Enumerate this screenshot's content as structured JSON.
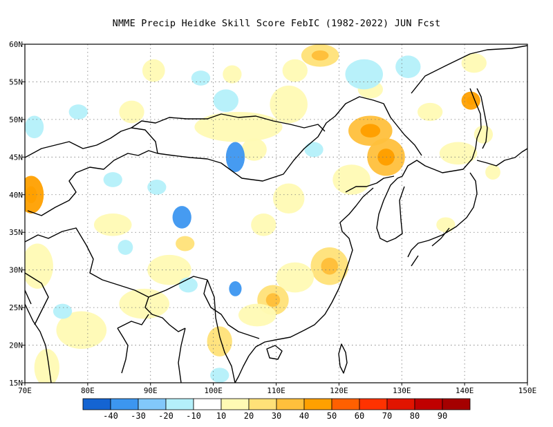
{
  "title": "NMME Precip Heidke Skill Score FebIC (1982-2022) JUN Fcst",
  "lon_range": [
    70,
    150
  ],
  "lat_range": [
    15,
    60
  ],
  "x_ticks": [
    {
      "value": 70,
      "label": "70E"
    },
    {
      "value": 80,
      "label": "80E"
    },
    {
      "value": 90,
      "label": "90E"
    },
    {
      "value": 100,
      "label": "100E"
    },
    {
      "value": 110,
      "label": "110E"
    },
    {
      "value": 120,
      "label": "120E"
    },
    {
      "value": 130,
      "label": "130E"
    },
    {
      "value": 140,
      "label": "140E"
    },
    {
      "value": 150,
      "label": "150E"
    }
  ],
  "y_ticks": [
    {
      "value": 15,
      "label": "15N"
    },
    {
      "value": 20,
      "label": "20N"
    },
    {
      "value": 25,
      "label": "25N"
    },
    {
      "value": 30,
      "label": "30N"
    },
    {
      "value": 35,
      "label": "35N"
    },
    {
      "value": 40,
      "label": "40N"
    },
    {
      "value": 45,
      "label": "45N"
    },
    {
      "value": 50,
      "label": "50N"
    },
    {
      "value": 55,
      "label": "55N"
    },
    {
      "value": 60,
      "label": "60N"
    }
  ],
  "grid": "dotted",
  "colorbar": {
    "colors": [
      "#1464d2",
      "#3c96f0",
      "#82c8fa",
      "#b4f0fa",
      "#ffffff",
      "#fffab4",
      "#ffe178",
      "#ffc03c",
      "#ffa000",
      "#ff6000",
      "#ff3200",
      "#e11400",
      "#c00000",
      "#a50000"
    ],
    "labels": [
      "-40",
      "-30",
      "-20",
      "-10",
      "10",
      "20",
      "30",
      "40",
      "50",
      "60",
      "70",
      "80",
      "90"
    ]
  },
  "patches": [
    {
      "lon": 90.5,
      "lat": 56.5,
      "rx": 1.8,
      "ry": 1.5,
      "level": 0.3
    },
    {
      "lon": 87,
      "lat": 51,
      "rx": 2,
      "ry": 1.5,
      "level": 0.4
    },
    {
      "lon": 71,
      "lat": 40,
      "rx": 2,
      "ry": 2.5,
      "level": 0.7
    },
    {
      "lon": 72,
      "lat": 30.5,
      "rx": 2.5,
      "ry": 3,
      "level": 0.4
    },
    {
      "lon": 84,
      "lat": 36,
      "rx": 3,
      "ry": 1.5,
      "level": 0.35
    },
    {
      "lon": 93,
      "lat": 30,
      "rx": 3.5,
      "ry": 2,
      "level": 0.35
    },
    {
      "lon": 95.5,
      "lat": 33.5,
      "rx": 1.5,
      "ry": 1,
      "level": 0.5
    },
    {
      "lon": 104,
      "lat": 49,
      "rx": 7,
      "ry": 2,
      "level": 0.35
    },
    {
      "lon": 106.5,
      "lat": 46,
      "rx": 2,
      "ry": 1.5,
      "level": 0.35
    },
    {
      "lon": 112,
      "lat": 52,
      "rx": 3,
      "ry": 2.5,
      "level": 0.3
    },
    {
      "lon": 117,
      "lat": 58.5,
      "rx": 3,
      "ry": 1.5,
      "level": 0.55
    },
    {
      "lon": 113,
      "lat": 56.5,
      "rx": 2,
      "ry": 1.5,
      "level": 0.35
    },
    {
      "lon": 125,
      "lat": 48.5,
      "rx": 3.5,
      "ry": 2,
      "level": 0.6
    },
    {
      "lon": 127.5,
      "lat": 45,
      "rx": 3,
      "ry": 2.5,
      "level": 0.6
    },
    {
      "lon": 122,
      "lat": 42,
      "rx": 3,
      "ry": 2,
      "level": 0.4
    },
    {
      "lon": 112,
      "lat": 39.5,
      "rx": 2.5,
      "ry": 2,
      "level": 0.4
    },
    {
      "lon": 108,
      "lat": 36,
      "rx": 2,
      "ry": 1.5,
      "level": 0.35
    },
    {
      "lon": 118.5,
      "lat": 30.5,
      "rx": 3,
      "ry": 2.5,
      "level": 0.55
    },
    {
      "lon": 113,
      "lat": 29,
      "rx": 3,
      "ry": 2,
      "level": 0.4
    },
    {
      "lon": 109.5,
      "lat": 26,
      "rx": 2.5,
      "ry": 2,
      "level": 0.55
    },
    {
      "lon": 107,
      "lat": 24,
      "rx": 3,
      "ry": 1.5,
      "level": 0.35
    },
    {
      "lon": 101,
      "lat": 20.5,
      "rx": 2,
      "ry": 2,
      "level": 0.5
    },
    {
      "lon": 89,
      "lat": 25.5,
      "rx": 4,
      "ry": 2,
      "level": 0.4
    },
    {
      "lon": 79,
      "lat": 22,
      "rx": 4,
      "ry": 2.5,
      "level": 0.35
    },
    {
      "lon": 73.5,
      "lat": 17,
      "rx": 2,
      "ry": 2.5,
      "level": 0.35
    },
    {
      "lon": 141,
      "lat": 52.5,
      "rx": 1.5,
      "ry": 1.2,
      "level": 0.7
    },
    {
      "lon": 143,
      "lat": 48,
      "rx": 1.5,
      "ry": 1.2,
      "level": 0.3
    },
    {
      "lon": 134.5,
      "lat": 51,
      "rx": 2,
      "ry": 1.2,
      "level": 0.3
    },
    {
      "lon": 139,
      "lat": 45.5,
      "rx": 3,
      "ry": 1.5,
      "level": 0.3
    },
    {
      "lon": 144.5,
      "lat": 43,
      "rx": 1.2,
      "ry": 1,
      "level": 0.35
    },
    {
      "lon": 137,
      "lat": 36,
      "rx": 1.5,
      "ry": 1,
      "level": 0.3
    },
    {
      "lon": 141.5,
      "lat": 57.5,
      "rx": 2,
      "ry": 1.3,
      "level": 0.3
    },
    {
      "lon": 103,
      "lat": 56,
      "rx": 1.5,
      "ry": 1.2,
      "level": 0.35
    },
    {
      "lon": 125,
      "lat": 54,
      "rx": 2,
      "ry": 1.2,
      "level": 0.3
    },
    {
      "lon": 103.5,
      "lat": 45,
      "rx": 1.5,
      "ry": 2,
      "level": -0.45
    },
    {
      "lon": 95,
      "lat": 37,
      "rx": 1.5,
      "ry": 1.5,
      "level": -0.4
    },
    {
      "lon": 103.5,
      "lat": 27.5,
      "rx": 1,
      "ry": 1,
      "level": -0.4
    },
    {
      "lon": 71.5,
      "lat": 49,
      "rx": 1.5,
      "ry": 1.5,
      "level": -0.2
    },
    {
      "lon": 78.5,
      "lat": 51,
      "rx": 1.5,
      "ry": 1,
      "level": -0.2
    },
    {
      "lon": 102,
      "lat": 52.5,
      "rx": 2,
      "ry": 1.5,
      "level": -0.2
    },
    {
      "lon": 98,
      "lat": 55.5,
      "rx": 1.5,
      "ry": 1,
      "level": -0.2
    },
    {
      "lon": 124,
      "lat": 56,
      "rx": 3,
      "ry": 2,
      "level": -0.2
    },
    {
      "lon": 131,
      "lat": 57,
      "rx": 2,
      "ry": 1.5,
      "level": -0.2
    },
    {
      "lon": 116,
      "lat": 46,
      "rx": 1.5,
      "ry": 1,
      "level": -0.2
    },
    {
      "lon": 91,
      "lat": 41,
      "rx": 1.5,
      "ry": 1,
      "level": -0.2
    },
    {
      "lon": 96,
      "lat": 28,
      "rx": 1.5,
      "ry": 1,
      "level": -0.2
    },
    {
      "lon": 101,
      "lat": 16,
      "rx": 1.5,
      "ry": 1,
      "level": -0.2
    },
    {
      "lon": 76,
      "lat": 24.5,
      "rx": 1.5,
      "ry": 1,
      "level": -0.2
    },
    {
      "lon": 84,
      "lat": 42,
      "rx": 1.5,
      "ry": 1,
      "level": -0.2
    },
    {
      "lon": 86,
      "lat": 33,
      "rx": 1.2,
      "ry": 1,
      "level": -0.2
    }
  ]
}
